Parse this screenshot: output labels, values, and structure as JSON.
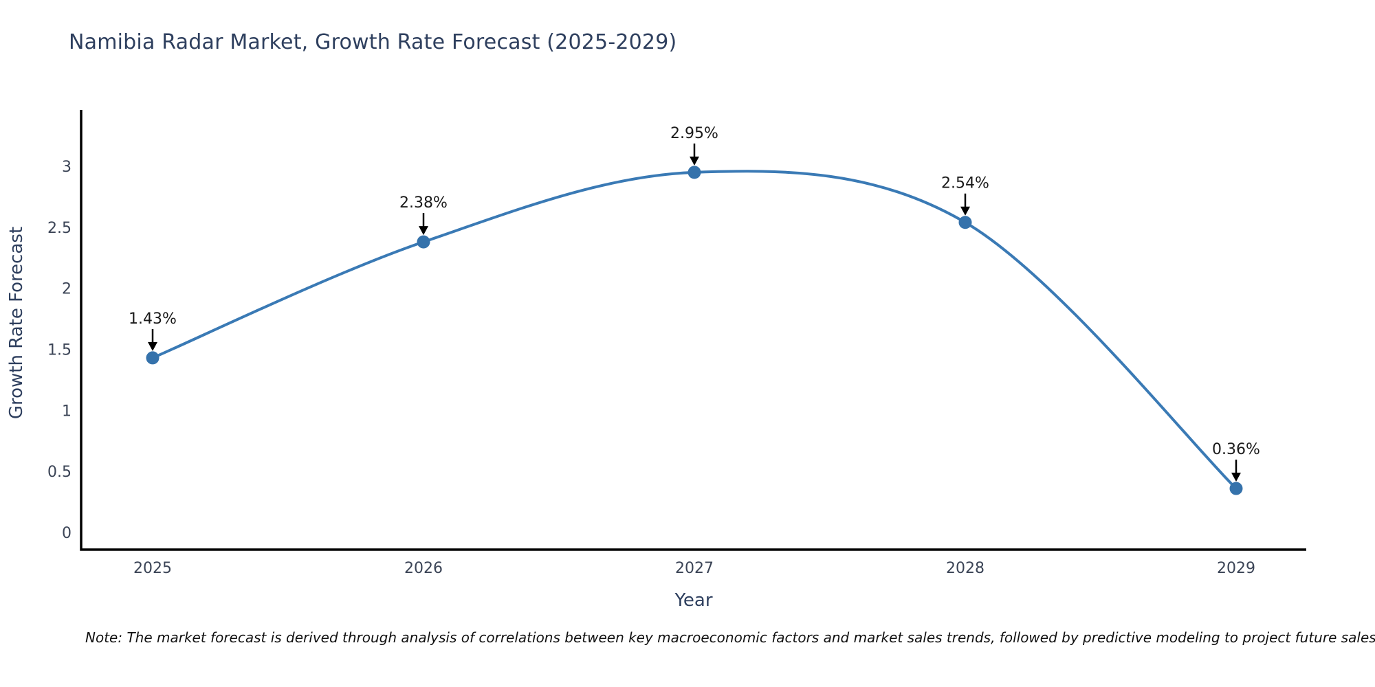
{
  "title": "Namibia Radar Market, Growth Rate Forecast (2025-2029)",
  "note": "Note: The market forecast is derived through analysis of correlations between key macroeconomic factors and market sales trends, followed by predictive modeling to project future sales",
  "chart_data": {
    "type": "line",
    "title": "Namibia Radar Market, Growth Rate Forecast (2025-2029)",
    "x": [
      2025,
      2026,
      2027,
      2028,
      2029
    ],
    "values": [
      1.43,
      2.38,
      2.95,
      2.54,
      0.36
    ],
    "point_labels": [
      "1.43%",
      "2.38%",
      "2.95%",
      "2.54%",
      "0.36%"
    ],
    "xlabel": "Year",
    "ylabel": "Growth Rate Forecast",
    "xticks": [
      "2025",
      "2026",
      "2027",
      "2028",
      "2029"
    ],
    "yticks": [
      "0",
      "0.5",
      "1",
      "1.5",
      "2",
      "2.5",
      "3"
    ],
    "ytick_values": [
      0,
      0.5,
      1,
      1.5,
      2,
      2.5,
      3
    ],
    "ylim": [
      0,
      3.6
    ],
    "smooth": true,
    "grid": false,
    "legend": false,
    "line_color": "#3a7ab5",
    "marker_color": "#3572ab",
    "axis_line_color": "#000000",
    "tick_label_color": "#3b4456",
    "axis_title_color": "#2e3f5e",
    "annotation_text_color": "#1a1a1a",
    "annotation_arrow_color": "#000000"
  }
}
